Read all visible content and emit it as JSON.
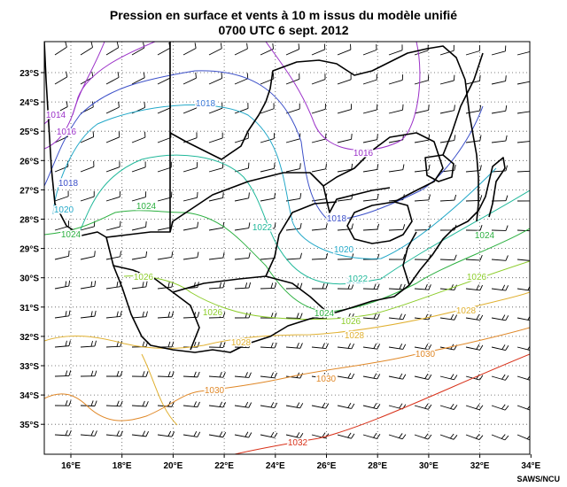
{
  "header": {
    "title_line1": "Pression en surface et vents à 10 m issus du modèle unifié",
    "title_line2": "0700 UTC 6 sept. 2012"
  },
  "footer": {
    "credit": "SAWS/NCU"
  },
  "axes": {
    "lat_labels": [
      "23°S",
      "24°S",
      "25°S",
      "26°S",
      "27°S",
      "28°S",
      "29°S",
      "30°S",
      "31°S",
      "32°S",
      "33°S",
      "34°S",
      "35°S"
    ],
    "lon_labels": [
      "16°E",
      "18°E",
      "20°E",
      "22°E",
      "24°E",
      "26°E",
      "28°E",
      "30°E",
      "32°E",
      "34°E"
    ]
  },
  "isobars": [
    {
      "label": "1014",
      "color": "#9b30c8"
    },
    {
      "label": "1016",
      "color": "#3b4fc8"
    },
    {
      "label": "1018",
      "color": "#3a78d6"
    },
    {
      "label": "1020",
      "color": "#23a8c8"
    },
    {
      "label": "1022",
      "color": "#20b89a"
    },
    {
      "label": "1024",
      "color": "#2cb040"
    },
    {
      "label": "1026",
      "color": "#8ccc2a"
    },
    {
      "label": "1028",
      "color": "#e0b030"
    },
    {
      "label": "1030",
      "color": "#e08828"
    },
    {
      "label": "1032",
      "color": "#d83018"
    }
  ],
  "contour_labels": [
    {
      "text": "1014",
      "color": "#9b30c8"
    },
    {
      "text": "1016",
      "color": "#9b30c8"
    },
    {
      "text": "1016",
      "color": "#9b30c8"
    },
    {
      "text": "1018",
      "color": "#3b4fc8"
    },
    {
      "text": "1018",
      "color": "#3b4fc8"
    },
    {
      "text": "1018",
      "color": "#3a78d6"
    },
    {
      "text": "1020",
      "color": "#23a8c8"
    },
    {
      "text": "1020",
      "color": "#23a8c8"
    },
    {
      "text": "1020",
      "color": "#23a8c8"
    },
    {
      "text": "1022",
      "color": "#20b89a"
    },
    {
      "text": "1022",
      "color": "#20b89a"
    },
    {
      "text": "1024",
      "color": "#2cb040"
    },
    {
      "text": "1024",
      "color": "#2cb040"
    },
    {
      "text": "1024",
      "color": "#2cb040"
    },
    {
      "text": "1024",
      "color": "#2cb040"
    },
    {
      "text": "1026",
      "color": "#8ccc2a"
    },
    {
      "text": "1026",
      "color": "#8ccc2a"
    },
    {
      "text": "1026",
      "color": "#8ccc2a"
    },
    {
      "text": "1026",
      "color": "#8ccc2a"
    },
    {
      "text": "1028",
      "color": "#e0b030"
    },
    {
      "text": "1028",
      "color": "#e0b030"
    },
    {
      "text": "1028",
      "color": "#e0b030"
    },
    {
      "text": "1030",
      "color": "#e08828"
    },
    {
      "text": "1030",
      "color": "#e08828"
    },
    {
      "text": "1030",
      "color": "#e08828"
    },
    {
      "text": "1032",
      "color": "#d83018"
    }
  ]
}
